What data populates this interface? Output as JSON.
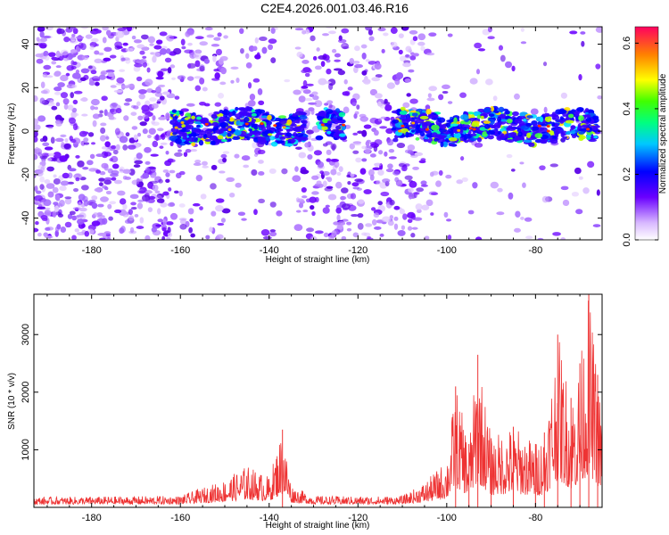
{
  "title": "C2E4.2026.001.03.46.R16",
  "chart_data": [
    {
      "type": "heatmap",
      "xlabel": "Height of straight line (km)",
      "ylabel": "Frequency (Hz)",
      "xlim": [
        -193,
        -65
      ],
      "ylim": [
        -50,
        48
      ],
      "xticks": [
        -180,
        -160,
        -140,
        -120,
        -100,
        -80
      ],
      "yticks": [
        -40,
        -20,
        0,
        20,
        40
      ],
      "colorbar": {
        "label": "Normalized spectral amplitude",
        "range": [
          0.0,
          0.65
        ],
        "ticks": [
          0.0,
          0.2,
          0.4,
          0.6
        ]
      },
      "signal_band": {
        "description_segments": [
          [
            -162,
            -132
          ],
          [
            -129,
            -123
          ],
          [
            -112,
            -66
          ]
        ],
        "center_hz": 2,
        "peak_amplitude": 0.62
      }
    },
    {
      "type": "line",
      "xlabel": "Height of straight line (km)",
      "ylabel": "SNR (10 * v/v)",
      "xlim": [
        -193,
        -65
      ],
      "ylim": [
        0,
        3700
      ],
      "xticks": [
        -180,
        -160,
        -140,
        -120,
        -100,
        -80
      ],
      "yticks": [
        1000,
        2000,
        3000
      ],
      "color": "#ee3333",
      "envelope": {
        "x": [
          -193,
          -175,
          -160,
          -150,
          -145,
          -140,
          -137,
          -135,
          -130,
          -120,
          -110,
          -105,
          -100,
          -98,
          -95,
          -93,
          -90,
          -85,
          -80,
          -78,
          -75,
          -72,
          -70,
          -68,
          -66,
          -65
        ],
        "y": [
          150,
          160,
          170,
          450,
          700,
          500,
          1350,
          350,
          170,
          160,
          170,
          400,
          800,
          2100,
          1100,
          2650,
          1200,
          1400,
          1100,
          1300,
          3000,
          1900,
          2500,
          3700,
          2300,
          1500
        ]
      }
    }
  ]
}
